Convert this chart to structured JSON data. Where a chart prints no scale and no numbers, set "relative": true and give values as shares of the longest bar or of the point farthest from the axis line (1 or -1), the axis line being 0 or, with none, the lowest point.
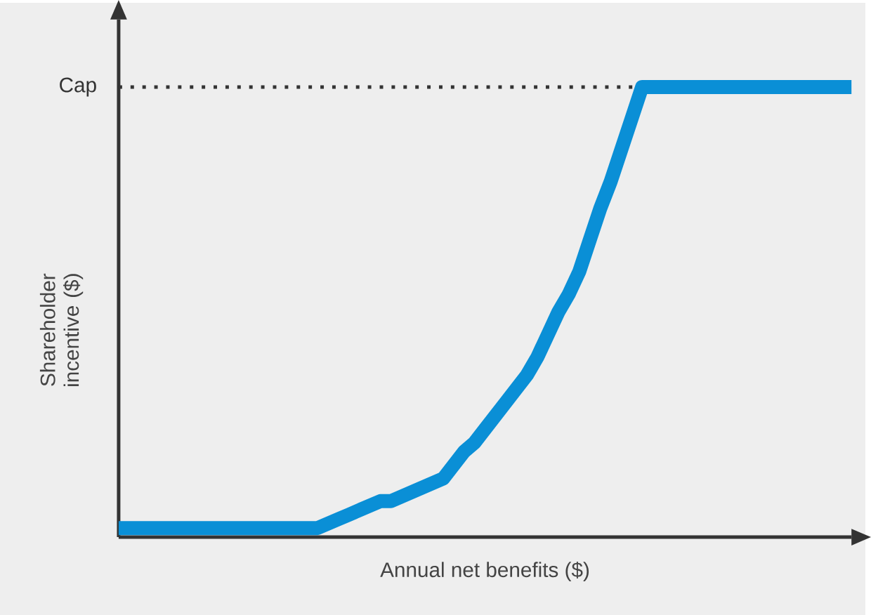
{
  "chart_data": {
    "type": "line",
    "relative": true,
    "xlabel": "Annual net benefits ($)",
    "ylabel": "Shareholder incentive ($)",
    "categories": [
      null,
      null,
      null,
      null,
      null,
      null,
      null,
      null,
      null,
      null,
      null,
      null,
      null,
      null,
      null,
      null,
      null,
      null,
      null,
      null,
      null,
      null,
      null,
      null,
      null,
      null,
      null,
      null,
      null,
      null,
      null,
      null,
      null,
      null,
      null,
      null,
      null,
      null,
      null,
      null,
      null,
      null,
      null,
      null,
      null,
      null,
      null,
      null,
      null,
      null,
      null,
      null,
      null,
      null,
      null,
      null,
      null,
      null,
      null,
      null,
      null,
      null,
      null,
      null,
      null,
      null,
      null,
      null,
      null,
      null,
      null
    ],
    "series": [
      {
        "color": "#0a8fd6",
        "values": [
          0.02,
          0.02,
          0.02,
          0.02,
          0.02,
          0.02,
          0.02,
          0.02,
          0.02,
          0.02,
          0.02,
          0.02,
          0.02,
          0.02,
          0.02,
          0.02,
          0.02,
          0.02,
          0.02,
          0.02,
          0.03,
          0.04,
          0.05,
          0.06,
          0.07,
          0.08,
          0.08,
          0.09,
          0.1,
          0.11,
          0.12,
          0.13,
          0.16,
          0.19,
          0.21,
          0.24,
          0.27,
          0.3,
          0.33,
          0.36,
          0.4,
          0.45,
          0.5,
          0.54,
          0.59,
          0.66,
          0.73,
          0.79,
          0.86,
          0.93,
          1,
          1,
          1,
          1,
          1,
          1,
          1,
          1,
          1,
          1,
          1,
          1,
          1,
          1,
          1,
          1,
          1,
          1,
          1,
          1,
          1
        ]
      }
    ],
    "ref_lines": [
      {
        "axis": "y",
        "value": 1,
        "label": "Cap",
        "line_style": "dotted",
        "color": "#333333"
      }
    ],
    "line_style": "solid"
  }
}
